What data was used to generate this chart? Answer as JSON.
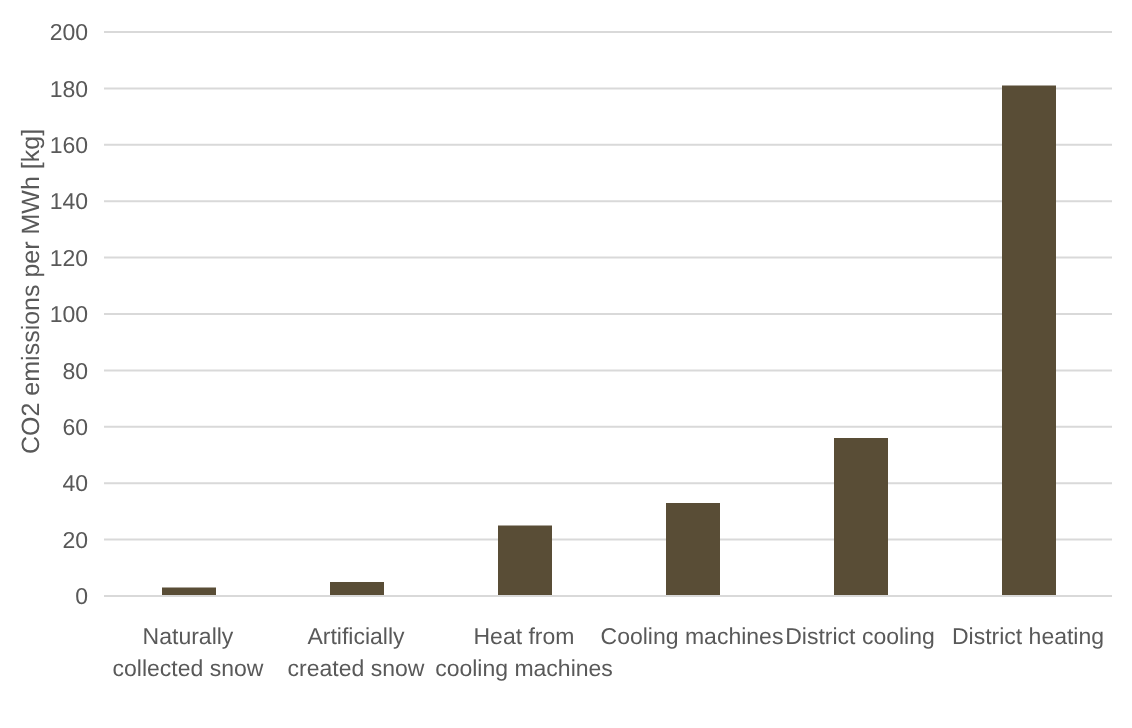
{
  "chart_data": {
    "type": "bar",
    "ylabel": "CO2 emissions per MWh [kg]",
    "categories": [
      "Naturally collected snow",
      "Artificially created snow",
      "Heat from cooling machines",
      "Cooling machines",
      "District cooling",
      "District heating"
    ],
    "values": [
      3,
      5,
      25,
      33,
      56,
      181
    ],
    "color": "#594d36",
    "ylim": [
      0,
      200
    ],
    "yticks": [
      0,
      20,
      40,
      60,
      80,
      100,
      120,
      140,
      160,
      180,
      200
    ],
    "grid": "y"
  }
}
